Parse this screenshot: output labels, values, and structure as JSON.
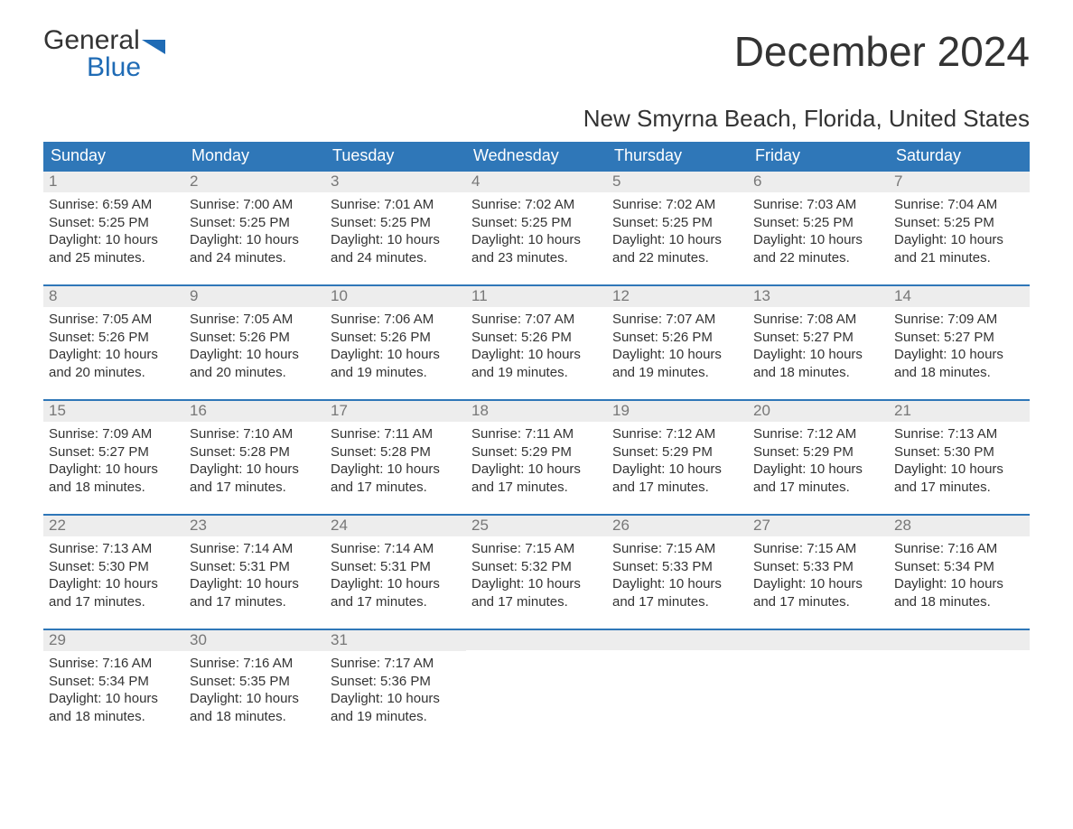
{
  "logo": {
    "word1": "General",
    "word2": "Blue",
    "flag_color": "#1f6bb5",
    "text_color": "#333333"
  },
  "header": {
    "title": "December 2024",
    "subtitle": "New Smyrna Beach, Florida, United States"
  },
  "styling": {
    "weekday_bg": "#2f77b8",
    "weekday_fg": "#ffffff",
    "week_border_color": "#2f77b8",
    "daynum_bg": "#ededed",
    "daynum_fg": "#777777",
    "body_text_color": "#333333",
    "background": "#ffffff",
    "weekday_fontsize": 18,
    "title_fontsize": 46,
    "subtitle_fontsize": 26,
    "cell_fontsize": 15
  },
  "labels": {
    "sunrise_prefix": "Sunrise: ",
    "sunset_prefix": "Sunset: ",
    "daylight_prefix": "Daylight: "
  },
  "weekdays": [
    "Sunday",
    "Monday",
    "Tuesday",
    "Wednesday",
    "Thursday",
    "Friday",
    "Saturday"
  ],
  "weeks": [
    [
      {
        "day": "1",
        "sunrise": "6:59 AM",
        "sunset": "5:25 PM",
        "daylight": "10 hours and 25 minutes."
      },
      {
        "day": "2",
        "sunrise": "7:00 AM",
        "sunset": "5:25 PM",
        "daylight": "10 hours and 24 minutes."
      },
      {
        "day": "3",
        "sunrise": "7:01 AM",
        "sunset": "5:25 PM",
        "daylight": "10 hours and 24 minutes."
      },
      {
        "day": "4",
        "sunrise": "7:02 AM",
        "sunset": "5:25 PM",
        "daylight": "10 hours and 23 minutes."
      },
      {
        "day": "5",
        "sunrise": "7:02 AM",
        "sunset": "5:25 PM",
        "daylight": "10 hours and 22 minutes."
      },
      {
        "day": "6",
        "sunrise": "7:03 AM",
        "sunset": "5:25 PM",
        "daylight": "10 hours and 22 minutes."
      },
      {
        "day": "7",
        "sunrise": "7:04 AM",
        "sunset": "5:25 PM",
        "daylight": "10 hours and 21 minutes."
      }
    ],
    [
      {
        "day": "8",
        "sunrise": "7:05 AM",
        "sunset": "5:26 PM",
        "daylight": "10 hours and 20 minutes."
      },
      {
        "day": "9",
        "sunrise": "7:05 AM",
        "sunset": "5:26 PM",
        "daylight": "10 hours and 20 minutes."
      },
      {
        "day": "10",
        "sunrise": "7:06 AM",
        "sunset": "5:26 PM",
        "daylight": "10 hours and 19 minutes."
      },
      {
        "day": "11",
        "sunrise": "7:07 AM",
        "sunset": "5:26 PM",
        "daylight": "10 hours and 19 minutes."
      },
      {
        "day": "12",
        "sunrise": "7:07 AM",
        "sunset": "5:26 PM",
        "daylight": "10 hours and 19 minutes."
      },
      {
        "day": "13",
        "sunrise": "7:08 AM",
        "sunset": "5:27 PM",
        "daylight": "10 hours and 18 minutes."
      },
      {
        "day": "14",
        "sunrise": "7:09 AM",
        "sunset": "5:27 PM",
        "daylight": "10 hours and 18 minutes."
      }
    ],
    [
      {
        "day": "15",
        "sunrise": "7:09 AM",
        "sunset": "5:27 PM",
        "daylight": "10 hours and 18 minutes."
      },
      {
        "day": "16",
        "sunrise": "7:10 AM",
        "sunset": "5:28 PM",
        "daylight": "10 hours and 17 minutes."
      },
      {
        "day": "17",
        "sunrise": "7:11 AM",
        "sunset": "5:28 PM",
        "daylight": "10 hours and 17 minutes."
      },
      {
        "day": "18",
        "sunrise": "7:11 AM",
        "sunset": "5:29 PM",
        "daylight": "10 hours and 17 minutes."
      },
      {
        "day": "19",
        "sunrise": "7:12 AM",
        "sunset": "5:29 PM",
        "daylight": "10 hours and 17 minutes."
      },
      {
        "day": "20",
        "sunrise": "7:12 AM",
        "sunset": "5:29 PM",
        "daylight": "10 hours and 17 minutes."
      },
      {
        "day": "21",
        "sunrise": "7:13 AM",
        "sunset": "5:30 PM",
        "daylight": "10 hours and 17 minutes."
      }
    ],
    [
      {
        "day": "22",
        "sunrise": "7:13 AM",
        "sunset": "5:30 PM",
        "daylight": "10 hours and 17 minutes."
      },
      {
        "day": "23",
        "sunrise": "7:14 AM",
        "sunset": "5:31 PM",
        "daylight": "10 hours and 17 minutes."
      },
      {
        "day": "24",
        "sunrise": "7:14 AM",
        "sunset": "5:31 PM",
        "daylight": "10 hours and 17 minutes."
      },
      {
        "day": "25",
        "sunrise": "7:15 AM",
        "sunset": "5:32 PM",
        "daylight": "10 hours and 17 minutes."
      },
      {
        "day": "26",
        "sunrise": "7:15 AM",
        "sunset": "5:33 PM",
        "daylight": "10 hours and 17 minutes."
      },
      {
        "day": "27",
        "sunrise": "7:15 AM",
        "sunset": "5:33 PM",
        "daylight": "10 hours and 17 minutes."
      },
      {
        "day": "28",
        "sunrise": "7:16 AM",
        "sunset": "5:34 PM",
        "daylight": "10 hours and 18 minutes."
      }
    ],
    [
      {
        "day": "29",
        "sunrise": "7:16 AM",
        "sunset": "5:34 PM",
        "daylight": "10 hours and 18 minutes."
      },
      {
        "day": "30",
        "sunrise": "7:16 AM",
        "sunset": "5:35 PM",
        "daylight": "10 hours and 18 minutes."
      },
      {
        "day": "31",
        "sunrise": "7:17 AM",
        "sunset": "5:36 PM",
        "daylight": "10 hours and 19 minutes."
      },
      null,
      null,
      null,
      null
    ]
  ]
}
